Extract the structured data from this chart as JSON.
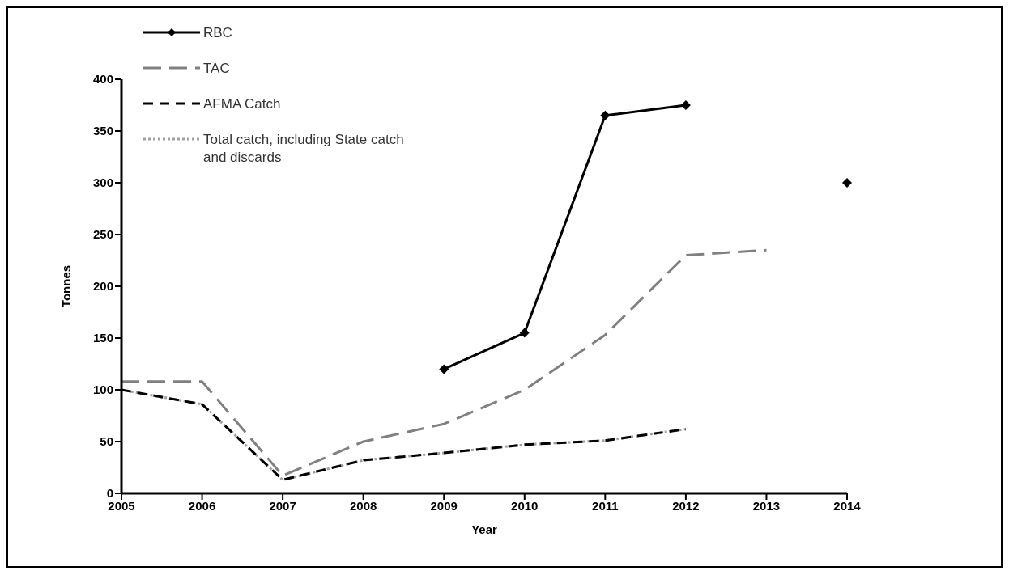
{
  "chart_data": {
    "type": "line",
    "xlabel": "Year",
    "ylabel": "Tonnes",
    "x": [
      2005,
      2006,
      2007,
      2008,
      2009,
      2010,
      2011,
      2012,
      2013,
      2014
    ],
    "series": [
      {
        "name": "RBC",
        "color": "#000000",
        "line_style": "solid",
        "marker": "diamond",
        "values": [
          null,
          null,
          null,
          null,
          120,
          155,
          365,
          375,
          null,
          300
        ]
      },
      {
        "name": "TAC",
        "color": "#808080",
        "line_style": "dashed",
        "marker": "none",
        "values": [
          108,
          108,
          17,
          50,
          67,
          100,
          153,
          230,
          235,
          null
        ]
      },
      {
        "name": "AFMA Catch",
        "color": "#000000",
        "line_style": "dashed",
        "marker": "none",
        "values": [
          100,
          86,
          13,
          32,
          39,
          47,
          51,
          62,
          null,
          null
        ]
      },
      {
        "name": "Total catch, including State catch and discards",
        "color": "#a0a0a0",
        "line_style": "dotted",
        "marker": "none",
        "values": [
          100,
          86,
          13,
          32,
          39,
          47,
          51,
          62,
          null,
          null
        ]
      }
    ],
    "xlim": [
      2005,
      2014
    ],
    "xticks": [
      2005,
      2006,
      2007,
      2008,
      2009,
      2010,
      2011,
      2012,
      2013,
      2014
    ],
    "ylim": [
      0,
      400
    ],
    "yticks": [
      0,
      50,
      100,
      150,
      200,
      250,
      300,
      350,
      400
    ],
    "grid": false,
    "legend": "top left"
  }
}
